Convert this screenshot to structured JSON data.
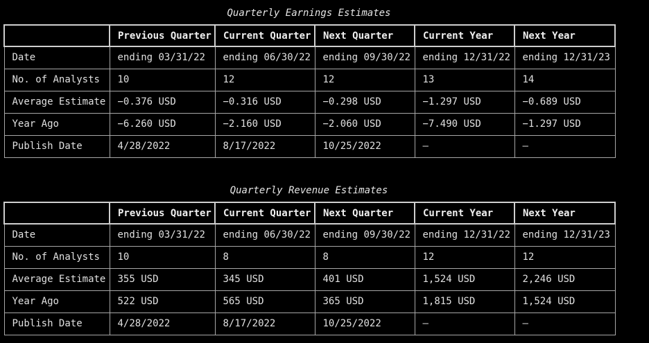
{
  "earnings": {
    "title": "Quarterly Earnings Estimates",
    "columns": [
      "",
      "Previous Quarter",
      "Current Quarter",
      "Next Quarter",
      "Current Year",
      "Next Year"
    ],
    "rows": [
      [
        "Date",
        "ending 03/31/22",
        "ending 06/30/22",
        "ending 09/30/22",
        "ending 12/31/22",
        "ending 12/31/23"
      ],
      [
        "No. of Analysts",
        "10",
        "12",
        "12",
        "13",
        "14"
      ],
      [
        "Average Estimate",
        "−0.376 USD",
        "−0.316 USD",
        "−0.298 USD",
        "−1.297 USD",
        "−0.689 USD"
      ],
      [
        "Year Ago",
        "−6.260 USD",
        "−2.160 USD",
        "−2.060 USD",
        "−7.490 USD",
        "−1.297 USD"
      ],
      [
        "Publish Date",
        "4/28/2022",
        "8/17/2022",
        "10/25/2022",
        "–",
        "–"
      ]
    ]
  },
  "revenue": {
    "title": "Quarterly Revenue Estimates",
    "columns": [
      "",
      "Previous Quarter",
      "Current Quarter",
      "Next Quarter",
      "Current Year",
      "Next Year"
    ],
    "rows": [
      [
        "Date",
        "ending 03/31/22",
        "ending 06/30/22",
        "ending 09/30/22",
        "ending 12/31/22",
        "ending 12/31/23"
      ],
      [
        "No. of Analysts",
        "10",
        "8",
        "8",
        "12",
        "12"
      ],
      [
        "Average Estimate",
        "355 USD",
        "345 USD",
        "401 USD",
        "1,524 USD",
        "2,246 USD"
      ],
      [
        "Year Ago",
        "522 USD",
        "565 USD",
        "365 USD",
        "1,815 USD",
        "1,524 USD"
      ],
      [
        "Publish Date",
        "4/28/2022",
        "8/17/2022",
        "10/25/2022",
        "–",
        "–"
      ]
    ]
  }
}
